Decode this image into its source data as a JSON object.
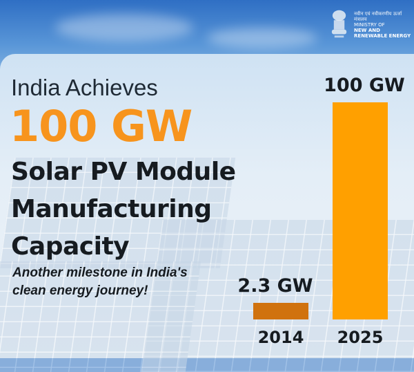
{
  "logo": {
    "hindi": "नवीन एवं नवीकरणीय ऊर्जा मंत्रालय",
    "line1": "MINISTRY OF",
    "line2": "NEW AND",
    "line3": "RENEWABLE ENERGY",
    "icon": "national-emblem-icon"
  },
  "headline": {
    "line1": "India Achieves",
    "highlight": "100 GW",
    "line2": "Solar PV Module",
    "line3": "Manufacturing",
    "line4": "Capacity"
  },
  "subtitle": {
    "line1": "Another milestone in India's",
    "line2": "clean energy journey!"
  },
  "colors": {
    "highlight": "#f7941d",
    "bar_2014": "#d0720e",
    "bar_2025": "#ffa000"
  },
  "chart_data": {
    "type": "bar",
    "categories": [
      "2014",
      "2025"
    ],
    "values": [
      2.3,
      100
    ],
    "data_labels": [
      "2.3 GW",
      "100 GW"
    ],
    "unit": "GW",
    "colors": [
      "#d0720e",
      "#ffa000"
    ],
    "grid": false
  }
}
